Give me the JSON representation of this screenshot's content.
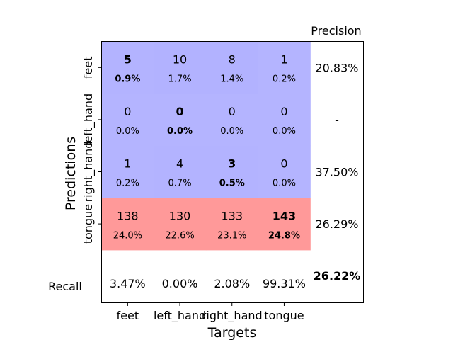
{
  "chart_data": {
    "type": "heatmap",
    "title": "",
    "xlabel": "Targets",
    "ylabel": "Predictions",
    "categories_x": [
      "feet",
      "left_hand",
      "right_hand",
      "tongue"
    ],
    "categories_y": [
      "feet",
      "left_hand",
      "right_hand",
      "tongue"
    ],
    "counts": [
      [
        5,
        10,
        8,
        1
      ],
      [
        0,
        0,
        0,
        0
      ],
      [
        1,
        4,
        3,
        0
      ],
      [
        138,
        130,
        133,
        143
      ]
    ],
    "percentages": [
      [
        "0.9%",
        "1.7%",
        "1.4%",
        "0.2%"
      ],
      [
        "0.0%",
        "0.0%",
        "0.0%",
        "0.0%"
      ],
      [
        "0.2%",
        "0.7%",
        "0.5%",
        "0.0%"
      ],
      [
        "24.0%",
        "22.6%",
        "23.1%",
        "24.8%"
      ]
    ],
    "precision_label": "Precision",
    "precision": [
      "20.83%",
      "-",
      "37.50%",
      "26.29%"
    ],
    "recall_label": "Recall",
    "recall": [
      "3.47%",
      "0.00%",
      "2.08%",
      "99.31%"
    ],
    "overall_accuracy": "26.22%",
    "colors": {
      "blue_base": "#9999ff",
      "red_base": "#ff9999",
      "frame": "#000000"
    }
  }
}
